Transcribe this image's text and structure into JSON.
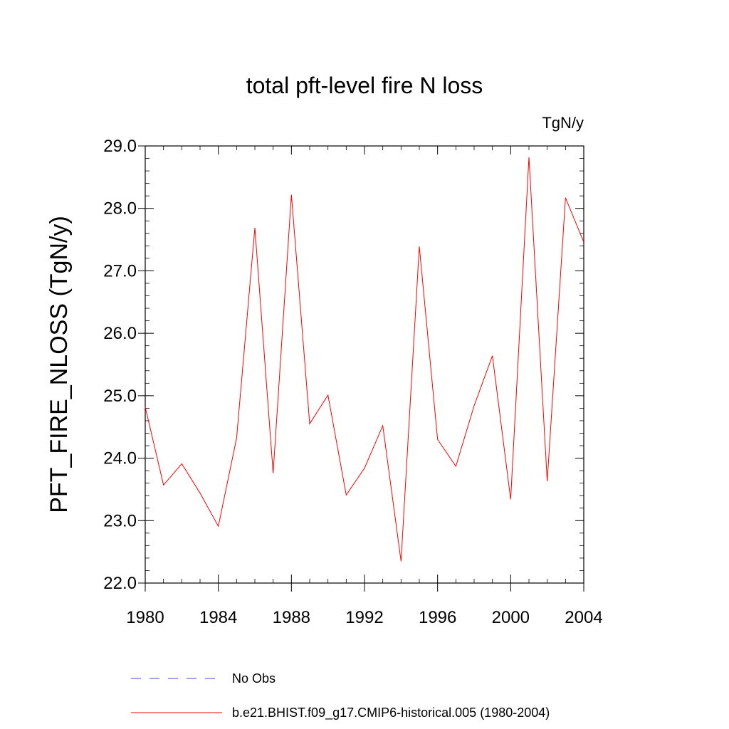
{
  "chart_data": {
    "type": "line",
    "title": "total pft-level fire N loss",
    "units_label": "TgN/y",
    "ylabel": "PFT_FIRE_NLOSS  (TgN/y)",
    "xlabel": "",
    "xlim": [
      1980,
      2004
    ],
    "ylim": [
      22.0,
      29.0
    ],
    "x_ticks": [
      "1980",
      "1984",
      "1988",
      "1992",
      "1996",
      "2000",
      "2004"
    ],
    "y_ticks": [
      "22.0",
      "23.0",
      "24.0",
      "25.0",
      "26.0",
      "27.0",
      "28.0",
      "29.0"
    ],
    "grid": false,
    "legend_position": "bottom",
    "series": [
      {
        "name": "b.e21.BHIST.f09_g17.CMIP6-historical.005 (1980-2004)",
        "color": "#ff0000",
        "style": "solid",
        "x": [
          1980,
          1981,
          1982,
          1983,
          1984,
          1985,
          1986,
          1987,
          1988,
          1989,
          1990,
          1991,
          1992,
          1993,
          1994,
          1995,
          1996,
          1997,
          1998,
          1999,
          2000,
          2001,
          2002,
          2003,
          2004
        ],
        "values": [
          24.82,
          23.57,
          23.91,
          23.44,
          22.91,
          24.32,
          27.69,
          23.76,
          28.22,
          24.55,
          25.01,
          23.41,
          23.84,
          24.52,
          22.35,
          27.39,
          24.3,
          23.87,
          24.84,
          25.64,
          23.34,
          28.82,
          23.63,
          28.17,
          27.46
        ]
      },
      {
        "name": "No Obs",
        "color": "#4b46c8",
        "style": "dashed",
        "x": [],
        "values": []
      }
    ]
  }
}
